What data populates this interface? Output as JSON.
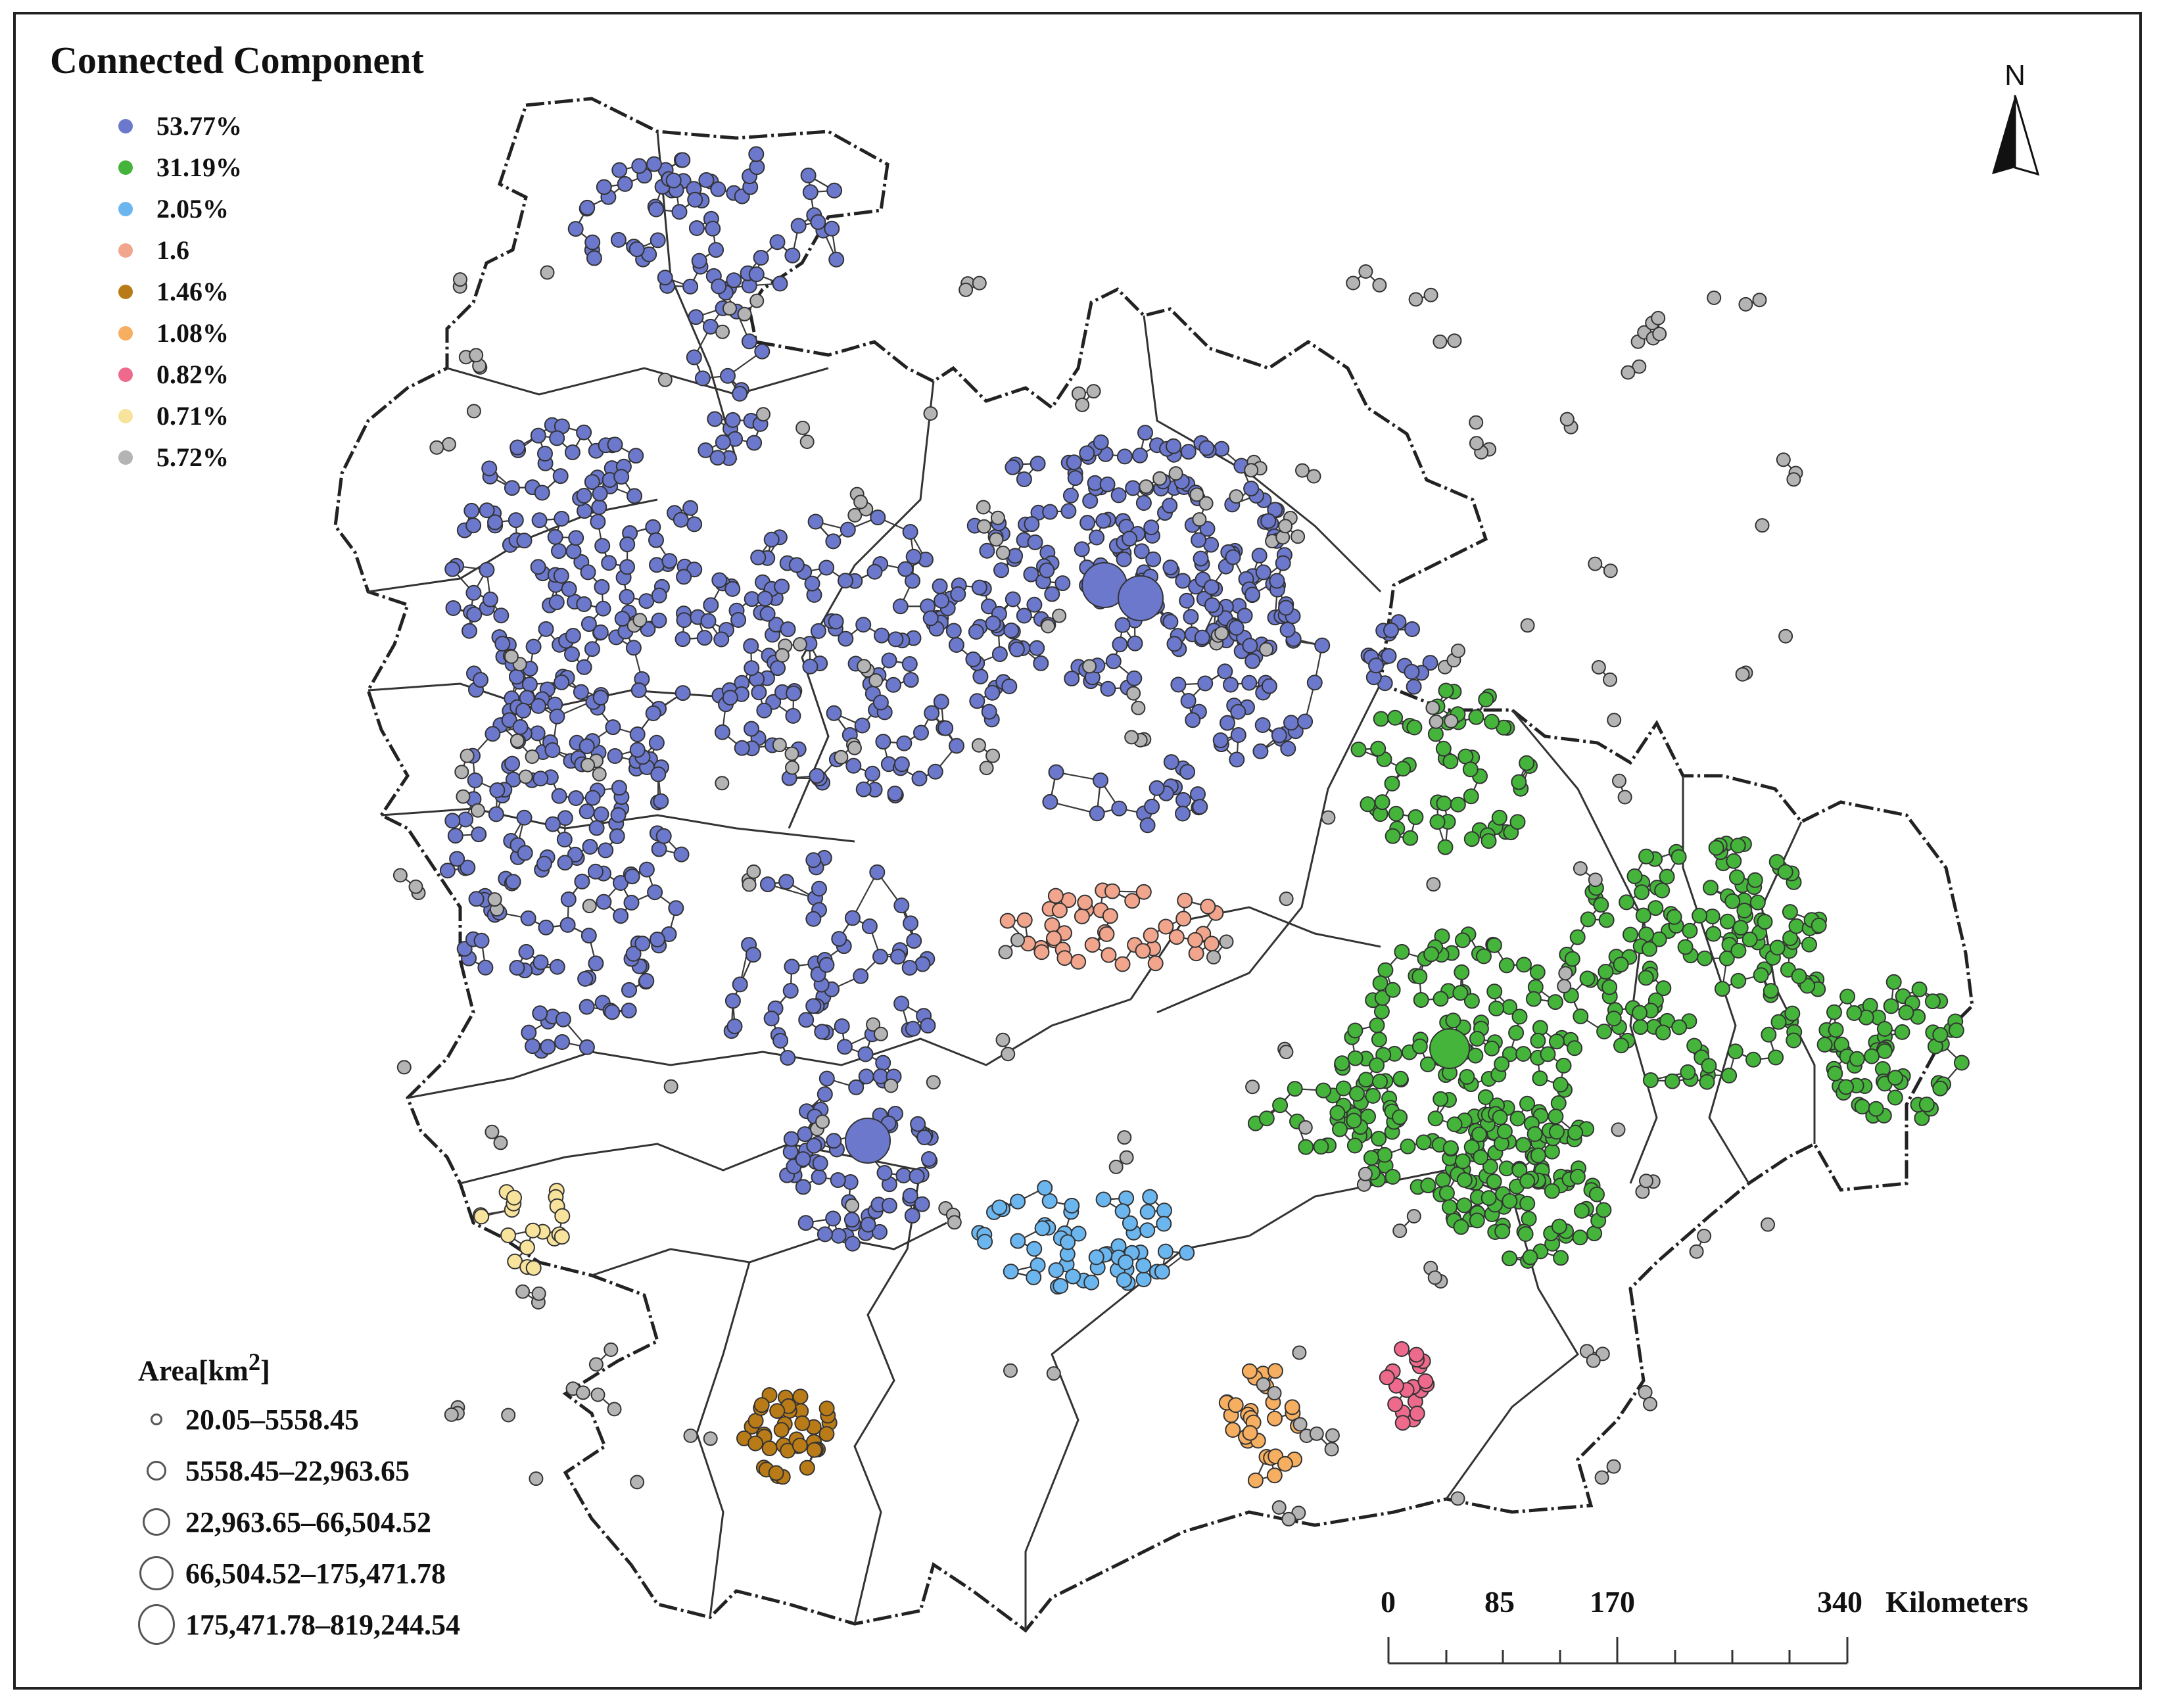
{
  "legend": {
    "title": "Connected Component",
    "items": [
      {
        "label": "53.77%",
        "color": "#6b78cc"
      },
      {
        "label": "31.19%",
        "color": "#45b43b"
      },
      {
        "label": "2.05%",
        "color": "#6bb6ee"
      },
      {
        "label": "1.6",
        "color": "#f0a58c"
      },
      {
        "label": "1.46%",
        "color": "#b97b17"
      },
      {
        "label": "1.08%",
        "color": "#f6ae60"
      },
      {
        "label": "0.82%",
        "color": "#ee6a8c"
      },
      {
        "label": "0.71%",
        "color": "#f7e39c"
      },
      {
        "label": "5.72%",
        "color": "#b4b4b4"
      }
    ]
  },
  "area_legend": {
    "title": "Area[km²]",
    "items": [
      {
        "label": "20.05–5558.45",
        "size": 1
      },
      {
        "label": "5558.45–22,963.65",
        "size": 2
      },
      {
        "label": "22,963.65–66,504.52",
        "size": 3
      },
      {
        "label": "66,504.52–175,471.78",
        "size": 4
      },
      {
        "label": "175,471.78–819,244.54",
        "size": 5
      }
    ]
  },
  "north_arrow": {
    "label": "N",
    "icon": "north-arrow-icon"
  },
  "scale_bar": {
    "ticks": [
      "0",
      "85",
      "170",
      "340"
    ],
    "unit": "Kilometers"
  },
  "colors": {
    "boundary": "#222222",
    "edge": "#3a3a3a",
    "node_stroke": "#333333"
  }
}
